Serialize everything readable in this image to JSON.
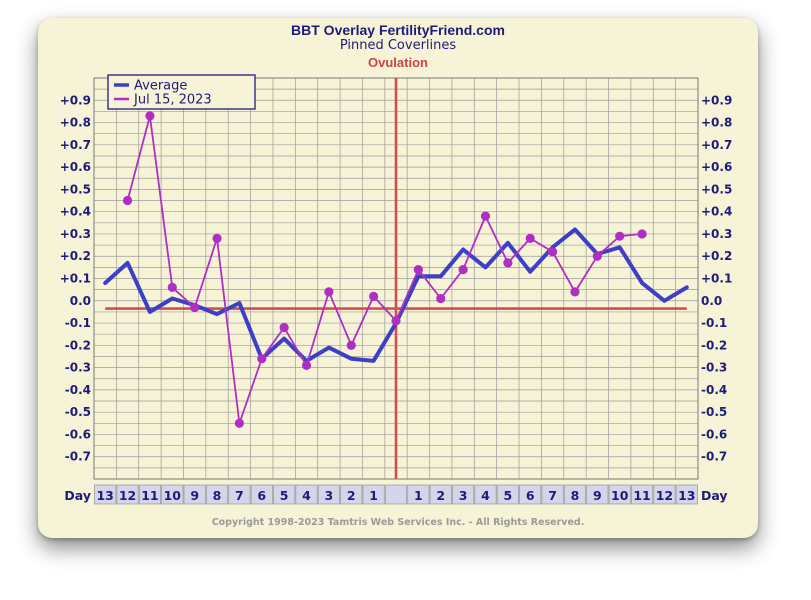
{
  "chart_data": {
    "type": "line",
    "title": "BBT Overlay FertilityFriend.com",
    "subtitle": "Pinned Coverlines",
    "marker_label": "Ovulation",
    "xlabel": "Day",
    "categories": [
      "13",
      "12",
      "11",
      "10",
      "9",
      "8",
      "7",
      "6",
      "5",
      "4",
      "3",
      "2",
      "1",
      "",
      "1",
      "2",
      "3",
      "4",
      "5",
      "6",
      "7",
      "8",
      "9",
      "10",
      "11",
      "12",
      "13"
    ],
    "y_ticks": [
      "+0.9",
      "+0.8",
      "+0.7",
      "+0.6",
      "+0.5",
      "+0.4",
      "+0.3",
      "+0.2",
      "+0.1",
      "0.0",
      "-0.1",
      "-0.2",
      "-0.3",
      "-0.4",
      "-0.5",
      "-0.6",
      "-0.7"
    ],
    "ylim": [
      -0.8,
      1.0
    ],
    "coverline": -0.035,
    "ovulation_category_index": 13,
    "grid": true,
    "legend_position": "top-left",
    "series": [
      {
        "name": "Average",
        "color": "#3d3fc6",
        "values": [
          0.08,
          0.17,
          -0.05,
          0.01,
          -0.02,
          -0.06,
          -0.01,
          -0.26,
          -0.17,
          -0.27,
          -0.21,
          -0.26,
          -0.27,
          -0.1,
          0.11,
          0.11,
          0.23,
          0.15,
          0.26,
          0.13,
          0.24,
          0.32,
          0.21,
          0.24,
          0.08,
          0.0,
          0.06
        ]
      },
      {
        "name": "Jul 15, 2023",
        "color": "#b02ec4",
        "values": [
          null,
          0.45,
          0.83,
          0.06,
          -0.03,
          0.28,
          -0.55,
          -0.26,
          -0.12,
          -0.29,
          0.04,
          -0.2,
          0.02,
          -0.09,
          0.14,
          0.01,
          0.14,
          0.38,
          0.17,
          0.28,
          0.22,
          0.04,
          0.2,
          0.29,
          0.3,
          null,
          null
        ]
      }
    ],
    "coverline_color": "#d05050",
    "ovulation_color": "#d05050",
    "day_box_color": "#d4d5ea",
    "copyright": "Copyright 1998-2023 Tamtris Web Services Inc. - All Rights Reserved."
  }
}
